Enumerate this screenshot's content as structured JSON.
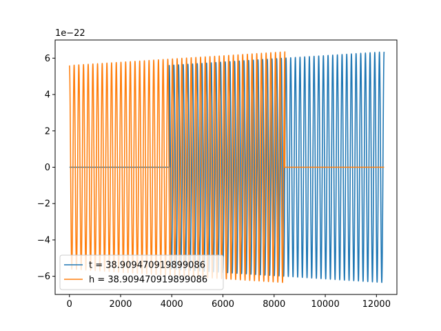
{
  "chart_data": {
    "type": "line",
    "xlim": [
      -560,
      12800
    ],
    "ylim": [
      -7.0,
      7.0
    ],
    "x_ticks": [
      0,
      2000,
      4000,
      6000,
      8000,
      10000,
      12000
    ],
    "x_tick_labels": [
      "0",
      "2000",
      "4000",
      "6000",
      "8000",
      "10000",
      "12000"
    ],
    "y_ticks": [
      -6,
      -4,
      -2,
      0,
      2,
      4,
      6
    ],
    "y_tick_labels": [
      "−6",
      "−4",
      "−2",
      "0",
      "2",
      "4",
      "6"
    ],
    "y_offset_label": "1e−22",
    "grid": false,
    "legend_position": "lower-left",
    "series": [
      {
        "name": "t = 38.909470919899086",
        "color": "#1f77b4",
        "flat_segment": {
          "x_start": 0,
          "x_end": 3900,
          "y": 0
        },
        "oscillation": {
          "x_start": 3900,
          "x_end": 12300,
          "cycles": 46,
          "amp_start": 5.6,
          "amp_end": 6.35
        }
      },
      {
        "name": "h = 38.909470919899086",
        "color": "#ff7f0e",
        "oscillation": {
          "x_start": 0,
          "x_end": 8420,
          "cycles": 46,
          "amp_start": 5.6,
          "amp_end": 6.35
        },
        "flat_segment": {
          "x_start": 8420,
          "x_end": 12300,
          "y": 0
        }
      }
    ]
  }
}
